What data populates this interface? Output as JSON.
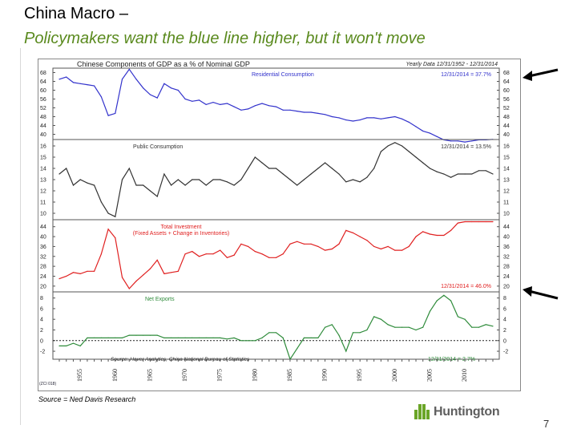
{
  "slide": {
    "title": "China Macro –",
    "subtitle": "Policymakers want the blue line higher, but it won't move",
    "source": "Source = Ned Davis Research",
    "logo_text": "Huntington",
    "page_number": "7",
    "brand_color": "#6aa527",
    "subtitle_color": "#5a8a1e"
  },
  "chart_data": {
    "type": "line",
    "title": "Chinese Components of GDP as a % of Nominal GDP",
    "frequency_label": "Yearly Data 12/31/1952 - 12/31/2014",
    "footnote": "Source: Haver Analytics, China National Bureau of Statistics",
    "chart_id": "(ZCI 018)",
    "x_ticks": [
      "1955",
      "1960",
      "1965",
      "1970",
      "1975",
      "1980",
      "1985",
      "1990",
      "1995",
      "2000",
      "2005",
      "2010"
    ],
    "x": [
      1952,
      1953,
      1954,
      1955,
      1956,
      1957,
      1958,
      1959,
      1960,
      1961,
      1962,
      1963,
      1964,
      1965,
      1966,
      1967,
      1968,
      1969,
      1970,
      1971,
      1972,
      1973,
      1974,
      1975,
      1976,
      1977,
      1978,
      1979,
      1980,
      1981,
      1982,
      1983,
      1984,
      1985,
      1986,
      1987,
      1988,
      1989,
      1990,
      1991,
      1992,
      1993,
      1994,
      1995,
      1996,
      1997,
      1998,
      1999,
      2000,
      2001,
      2002,
      2003,
      2004,
      2005,
      2006,
      2007,
      2008,
      2009,
      2010,
      2011,
      2012,
      2013,
      2014
    ],
    "panels": [
      {
        "name": "Residential Consumption",
        "end_label": "12/31/2014 = 37.7%",
        "color": "#3333cc",
        "yticks": [
          68,
          64,
          60,
          56,
          52,
          48,
          44,
          40
        ],
        "ylim": [
          38,
          70
        ],
        "values": [
          65.0,
          66.0,
          63.5,
          63.0,
          62.5,
          62.0,
          57.0,
          48.5,
          49.5,
          65.0,
          69.5,
          65.0,
          61.0,
          58.0,
          56.5,
          63.0,
          61.0,
          60.0,
          56.0,
          55.0,
          55.5,
          53.5,
          54.5,
          53.5,
          54.0,
          52.5,
          51.0,
          51.5,
          53.0,
          54.0,
          53.0,
          52.5,
          51.0,
          51.0,
          50.5,
          50.0,
          50.0,
          49.5,
          49.0,
          48.0,
          47.5,
          46.5,
          46.0,
          46.5,
          47.5,
          47.5,
          47.0,
          47.5,
          48.0,
          47.0,
          45.5,
          43.5,
          41.5,
          40.5,
          39.0,
          37.5,
          37.0,
          37.0,
          36.5,
          37.0,
          37.5,
          37.5,
          37.7
        ]
      },
      {
        "name": "Public Consumption",
        "end_label": "12/31/2014 = 13.5%",
        "color": "#333333",
        "yticks": [
          16,
          15,
          14,
          13,
          12,
          11,
          10
        ],
        "ylim": [
          9.5,
          16.5
        ],
        "values": [
          13.5,
          14.0,
          12.5,
          13.0,
          12.7,
          12.5,
          11.0,
          10.0,
          9.7,
          13.0,
          14.0,
          12.5,
          12.5,
          12.0,
          11.5,
          13.5,
          12.5,
          13.0,
          12.5,
          13.0,
          13.0,
          12.5,
          13.0,
          13.0,
          12.8,
          12.5,
          13.0,
          14.0,
          15.0,
          14.5,
          14.0,
          14.0,
          13.5,
          13.0,
          12.5,
          13.0,
          13.5,
          14.0,
          14.5,
          14.0,
          13.5,
          12.8,
          13.0,
          12.8,
          13.2,
          14.0,
          15.5,
          16.0,
          16.3,
          16.0,
          15.5,
          15.0,
          14.5,
          14.0,
          13.7,
          13.5,
          13.2,
          13.5,
          13.5,
          13.5,
          13.8,
          13.8,
          13.5
        ]
      },
      {
        "name": "Total Investment",
        "subname": "(Fixed Assets + Change in Inventories)",
        "end_label": "12/31/2014 = 46.0%",
        "color": "#e02020",
        "yticks": [
          44,
          40,
          36,
          32,
          28,
          24,
          20
        ],
        "ylim": [
          18,
          46.5
        ],
        "values": [
          23.0,
          24.0,
          25.5,
          25.0,
          26.0,
          26.0,
          33.0,
          43.0,
          39.5,
          23.5,
          19.0,
          22.0,
          24.5,
          27.0,
          30.5,
          25.0,
          25.5,
          26.0,
          33.0,
          34.0,
          32.0,
          33.0,
          33.0,
          34.5,
          31.5,
          32.5,
          37.0,
          36.0,
          34.0,
          33.0,
          31.5,
          31.5,
          33.0,
          37.0,
          38.0,
          37.0,
          37.0,
          36.0,
          34.5,
          35.0,
          37.0,
          42.5,
          41.5,
          40.0,
          38.5,
          36.0,
          35.0,
          36.0,
          34.5,
          34.5,
          36.0,
          40.0,
          42.0,
          41.0,
          40.5,
          40.5,
          42.5,
          45.5,
          46.0,
          46.0,
          46.0,
          46.0,
          46.0
        ]
      },
      {
        "name": "Net Exports",
        "end_label": "12/31/2014 = 2.7%",
        "color": "#2e8b3a",
        "yticks": [
          8,
          6,
          4,
          2,
          0,
          -2
        ],
        "ylim": [
          -3.5,
          9
        ],
        "values": [
          -1.0,
          -1.0,
          -0.5,
          -1.0,
          0.5,
          0.5,
          0.5,
          0.5,
          0.5,
          0.5,
          1.0,
          1.0,
          1.0,
          1.0,
          1.0,
          0.5,
          0.5,
          0.5,
          0.5,
          0.5,
          0.5,
          0.5,
          0.5,
          0.5,
          0.3,
          0.5,
          0.0,
          0.0,
          0.0,
          0.5,
          1.5,
          1.5,
          0.5,
          -3.5,
          -1.5,
          0.5,
          0.5,
          0.5,
          2.5,
          3.0,
          1.0,
          -2.0,
          1.5,
          1.5,
          2.0,
          4.5,
          4.0,
          3.0,
          2.5,
          2.5,
          2.5,
          2.0,
          2.5,
          5.5,
          7.5,
          8.5,
          7.5,
          4.5,
          4.0,
          2.5,
          2.5,
          3.0,
          2.7
        ]
      }
    ]
  }
}
